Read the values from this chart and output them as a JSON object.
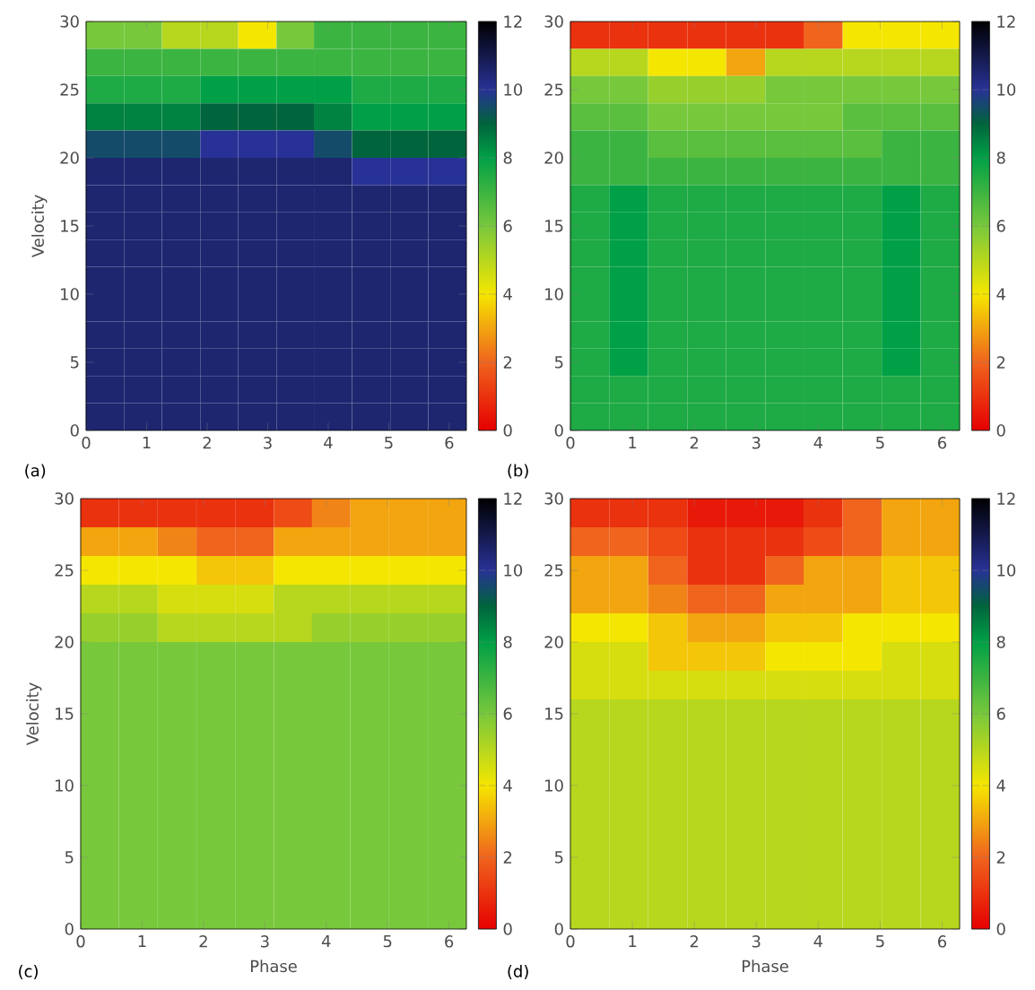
{
  "chart_data": [
    {
      "type": "heatmap",
      "ylabel": "Velocity",
      "annotations": [
        "(a)"
      ],
      "x": [
        0.31,
        0.94,
        1.57,
        2.2,
        2.83,
        3.46,
        4.08,
        4.71,
        5.34,
        5.97
      ],
      "y": [
        29,
        27,
        25,
        23,
        21,
        19,
        17,
        15,
        13,
        11,
        9,
        7,
        5,
        3,
        1
      ],
      "xlim": [
        0,
        6.283
      ],
      "ylim": [
        0,
        30
      ],
      "xticks": [
        0,
        1,
        2,
        3,
        4,
        5,
        6
      ],
      "yticks": [
        0,
        5,
        10,
        15,
        20,
        25,
        30
      ],
      "clim": [
        0,
        12
      ],
      "cticks": [
        0,
        2,
        4,
        6,
        8,
        10,
        12
      ],
      "cells": [
        [
          6,
          6,
          5,
          5,
          4,
          6,
          7,
          7,
          7,
          7
        ],
        [
          7,
          7,
          7,
          7,
          7,
          7,
          7,
          7,
          7,
          7
        ],
        [
          7.5,
          7.5,
          7.5,
          8,
          8,
          8,
          8,
          7.5,
          7.5,
          7.5
        ],
        [
          8.5,
          8.5,
          8.5,
          9,
          9,
          9,
          8.5,
          8,
          8,
          8
        ],
        [
          9.5,
          9.5,
          9.5,
          10,
          10,
          10,
          9.5,
          9,
          9,
          9
        ],
        [
          10.5,
          10.5,
          10.5,
          10.5,
          10.5,
          10.5,
          10.5,
          10,
          10,
          10
        ],
        [
          10.5,
          10.5,
          10.5,
          10.5,
          10.5,
          10.5,
          10.5,
          10.5,
          10.5,
          10.5
        ],
        [
          10.5,
          10.5,
          10.5,
          10.5,
          10.5,
          10.5,
          10.5,
          10.5,
          10.5,
          10.5
        ],
        [
          10.5,
          10.5,
          10.5,
          10.5,
          10.5,
          10.5,
          10.5,
          10.5,
          10.5,
          10.5
        ],
        [
          10.5,
          10.5,
          10.5,
          10.5,
          10.5,
          10.5,
          10.5,
          10.5,
          10.5,
          10.5
        ],
        [
          10.5,
          10.5,
          10.5,
          10.5,
          10.5,
          10.5,
          10.5,
          10.5,
          10.5,
          10.5
        ],
        [
          10.5,
          10.5,
          10.5,
          10.5,
          10.5,
          10.5,
          10.5,
          10.5,
          10.5,
          10.5
        ],
        [
          10.5,
          10.5,
          10.5,
          10.5,
          10.5,
          10.5,
          10.5,
          10.5,
          10.5,
          10.5
        ],
        [
          10.5,
          10.5,
          10.5,
          10.5,
          10.5,
          10.5,
          10.5,
          10.5,
          10.5,
          10.5
        ],
        [
          10.5,
          10.5,
          10.5,
          10.5,
          10.5,
          10.5,
          10.5,
          10.5,
          10.5,
          10.5
        ]
      ]
    },
    {
      "type": "heatmap",
      "annotations": [
        "(b)"
      ],
      "x": [
        0.31,
        0.94,
        1.57,
        2.2,
        2.83,
        3.46,
        4.08,
        4.71,
        5.34,
        5.97
      ],
      "y": [
        29,
        27,
        25,
        23,
        21,
        19,
        17,
        15,
        13,
        11,
        9,
        7,
        5,
        3,
        1
      ],
      "xlim": [
        0,
        6.283
      ],
      "ylim": [
        0,
        30
      ],
      "xticks": [
        0,
        1,
        2,
        3,
        4,
        5,
        6
      ],
      "yticks": [
        0,
        5,
        10,
        15,
        20,
        25,
        30
      ],
      "clim": [
        0,
        12
      ],
      "cticks": [
        0,
        2,
        4,
        6,
        8,
        10,
        12
      ],
      "cells": [
        [
          1,
          1,
          1,
          1,
          1,
          1,
          2,
          4,
          4,
          4
        ],
        [
          5,
          5,
          4,
          4,
          3,
          5,
          5,
          5,
          5,
          5
        ],
        [
          6,
          6,
          5.5,
          5.5,
          5.5,
          6,
          6,
          6,
          6,
          6
        ],
        [
          6.5,
          6.5,
          6,
          6,
          6,
          6,
          6,
          6.5,
          6.5,
          6.5
        ],
        [
          7,
          7,
          6.5,
          6.5,
          6.5,
          6.5,
          6.5,
          6.5,
          7,
          7
        ],
        [
          7,
          7,
          7,
          7,
          7,
          7,
          7,
          7,
          7,
          7
        ],
        [
          7.5,
          8,
          7.5,
          7.5,
          7.5,
          7.5,
          7.5,
          7.5,
          8,
          7.5
        ],
        [
          7.5,
          8,
          7.5,
          7.5,
          7.5,
          7.5,
          7.5,
          7.5,
          8,
          7.5
        ],
        [
          7.5,
          8,
          7.5,
          7.5,
          7.5,
          7.5,
          7.5,
          7.5,
          8,
          7.5
        ],
        [
          7.5,
          8,
          7.5,
          7.5,
          7.5,
          7.5,
          7.5,
          7.5,
          8,
          7.5
        ],
        [
          7.5,
          8,
          7.5,
          7.5,
          7.5,
          7.5,
          7.5,
          7.5,
          8,
          7.5
        ],
        [
          7.5,
          8,
          7.5,
          7.5,
          7.5,
          7.5,
          7.5,
          7.5,
          8,
          7.5
        ],
        [
          7.5,
          8,
          7.5,
          7.5,
          7.5,
          7.5,
          7.5,
          7.5,
          8,
          7.5
        ],
        [
          7.5,
          7.5,
          7.5,
          7.5,
          7.5,
          7.5,
          7.5,
          7.5,
          7.5,
          7.5
        ],
        [
          7.5,
          7.5,
          7.5,
          7.5,
          7.5,
          7.5,
          7.5,
          7.5,
          7.5,
          7.5
        ]
      ]
    },
    {
      "type": "heatmap",
      "xlabel": "Phase",
      "ylabel": "Velocity",
      "annotations": [
        "(c)"
      ],
      "x": [
        0.31,
        0.94,
        1.57,
        2.2,
        2.83,
        3.46,
        4.08,
        4.71,
        5.34,
        5.97
      ],
      "y": [
        29,
        27,
        25,
        23,
        21,
        19,
        17,
        15,
        13,
        11,
        9,
        7,
        5,
        3,
        1
      ],
      "xlim": [
        0,
        6.283
      ],
      "ylim": [
        0,
        30
      ],
      "xticks": [
        0,
        1,
        2,
        3,
        4,
        5,
        6
      ],
      "yticks": [
        0,
        5,
        10,
        15,
        20,
        25,
        30
      ],
      "clim": [
        0,
        12
      ],
      "cticks": [
        0,
        2,
        4,
        6,
        8,
        10,
        12
      ],
      "cells": [
        [
          1,
          1,
          1,
          1,
          1,
          1.5,
          2.5,
          3,
          3,
          3
        ],
        [
          3,
          3,
          2.5,
          2,
          2,
          3,
          3,
          3,
          3,
          3
        ],
        [
          4,
          4,
          4,
          3.5,
          3.5,
          4,
          4,
          4,
          4,
          4
        ],
        [
          5,
          5,
          4.5,
          4.5,
          4.5,
          5,
          5,
          5,
          5,
          5
        ],
        [
          5.5,
          5.5,
          5,
          5,
          5,
          5,
          5.5,
          5.5,
          5.5,
          5.5
        ],
        [
          6,
          6,
          6,
          6,
          6,
          6,
          6,
          6,
          6,
          6
        ],
        [
          6,
          6,
          6,
          6,
          6,
          6,
          6,
          6,
          6,
          6
        ],
        [
          6,
          6,
          6,
          6,
          6,
          6,
          6,
          6,
          6,
          6
        ],
        [
          6,
          6,
          6,
          6,
          6,
          6,
          6,
          6,
          6,
          6
        ],
        [
          6,
          6,
          6,
          6,
          6,
          6,
          6,
          6,
          6,
          6
        ],
        [
          6,
          6,
          6,
          6,
          6,
          6,
          6,
          6,
          6,
          6
        ],
        [
          6,
          6,
          6,
          6,
          6,
          6,
          6,
          6,
          6,
          6
        ],
        [
          6,
          6,
          6,
          6,
          6,
          6,
          6,
          6,
          6,
          6
        ],
        [
          6,
          6,
          6,
          6,
          6,
          6,
          6,
          6,
          6,
          6
        ],
        [
          6,
          6,
          6,
          6,
          6,
          6,
          6,
          6,
          6,
          6
        ]
      ]
    },
    {
      "type": "heatmap",
      "xlabel": "Phase",
      "annotations": [
        "(d)"
      ],
      "x": [
        0.31,
        0.94,
        1.57,
        2.2,
        2.83,
        3.46,
        4.08,
        4.71,
        5.34,
        5.97
      ],
      "y": [
        29,
        27,
        25,
        23,
        21,
        19,
        17,
        15,
        13,
        11,
        9,
        7,
        5,
        3,
        1
      ],
      "xlim": [
        0,
        6.283
      ],
      "ylim": [
        0,
        30
      ],
      "xticks": [
        0,
        1,
        2,
        3,
        4,
        5,
        6
      ],
      "yticks": [
        0,
        5,
        10,
        15,
        20,
        25,
        30
      ],
      "clim": [
        0,
        12
      ],
      "cticks": [
        0,
        2,
        4,
        6,
        8,
        10,
        12
      ],
      "cells": [
        [
          1,
          1,
          1,
          0.5,
          0.5,
          0.5,
          1,
          2,
          3,
          3
        ],
        [
          2,
          2,
          1.5,
          1,
          1,
          1,
          1.5,
          2,
          3,
          3
        ],
        [
          3,
          3,
          2,
          1,
          1,
          2,
          3,
          3,
          3.5,
          3.5
        ],
        [
          3,
          3,
          2.5,
          2,
          2,
          3,
          3,
          3,
          3.5,
          3.5
        ],
        [
          4,
          4,
          3.5,
          3,
          3,
          3.5,
          3.5,
          4,
          4,
          4
        ],
        [
          4.5,
          4.5,
          3.5,
          3.5,
          3.5,
          4,
          4,
          4,
          4.5,
          4.5
        ],
        [
          4.5,
          4.5,
          4.5,
          4.5,
          4.5,
          4.5,
          4.5,
          4.5,
          4.5,
          4.5
        ],
        [
          5,
          5,
          5,
          5,
          5,
          5,
          5,
          5,
          5,
          5
        ],
        [
          5,
          5,
          5,
          5,
          5,
          5,
          5,
          5,
          5,
          5
        ],
        [
          5,
          5,
          5,
          5,
          5,
          5,
          5,
          5,
          5,
          5
        ],
        [
          5,
          5,
          5,
          5,
          5,
          5,
          5,
          5,
          5,
          5
        ],
        [
          5,
          5,
          5,
          5,
          5,
          5,
          5,
          5,
          5,
          5
        ],
        [
          5,
          5,
          5,
          5,
          5,
          5,
          5,
          5,
          5,
          5
        ],
        [
          5,
          5,
          5,
          5,
          5,
          5,
          5,
          5,
          5,
          5
        ],
        [
          5,
          5,
          5,
          5,
          5,
          5,
          5,
          5,
          5,
          5
        ]
      ]
    }
  ]
}
